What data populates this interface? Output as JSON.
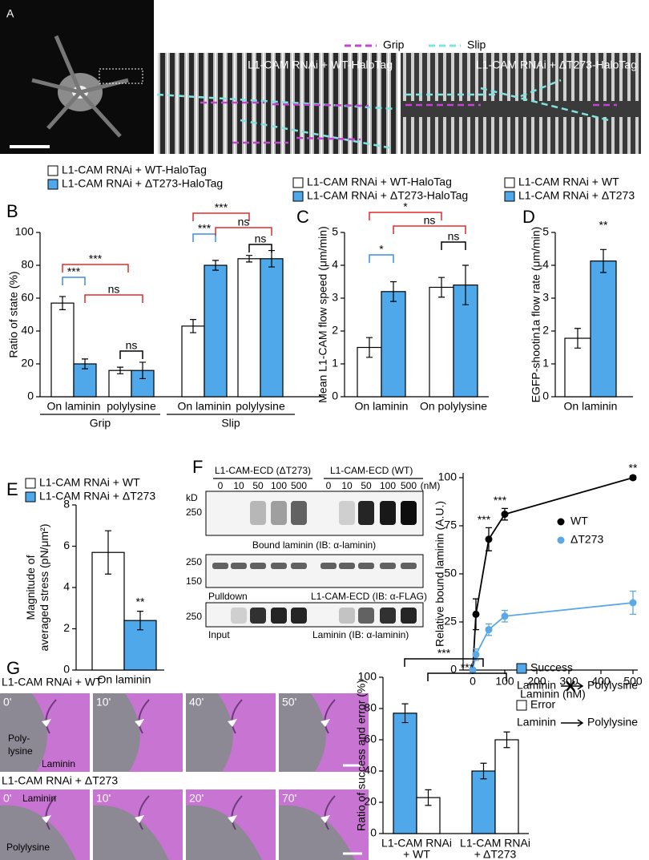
{
  "panel_a": {
    "label": "A",
    "legend": [
      {
        "name": "Grip",
        "color": "#c444d4"
      },
      {
        "name": "Slip",
        "color": "#7fe3e0"
      }
    ],
    "images": [
      "L1-CAM RNAi + WT-HaloTag",
      "L1-CAM RNAi + ΔT273-HaloTag"
    ]
  },
  "chart_data": [
    {
      "type": "bar",
      "panel": "B",
      "ylabel": "Ratio of state (%)",
      "categories": [
        "On laminin",
        "polylysine",
        "On laminin",
        "polylysine"
      ],
      "groups": [
        "Grip",
        "Slip"
      ],
      "series": [
        {
          "name": "L1-CAM RNAi + WT-HaloTag",
          "color": "#ffffff",
          "values": [
            57,
            16,
            43,
            84
          ],
          "errors": [
            4,
            2,
            4,
            2
          ]
        },
        {
          "name": "L1-CAM RNAi + ΔT273-HaloTag",
          "color": "#4fa8ea",
          "values": [
            20,
            16,
            80,
            84
          ],
          "errors": [
            3,
            5,
            3,
            5
          ]
        }
      ],
      "ylim": [
        0,
        100
      ],
      "yticks": [
        0,
        20,
        40,
        60,
        80,
        100
      ],
      "annotations": [
        {
          "text": "***",
          "color": "#e02b2b"
        },
        {
          "text": "***",
          "color": "#3d8fe0"
        },
        {
          "text": "ns",
          "color": "#e02b2b"
        },
        {
          "text": "ns",
          "color": "#000000"
        },
        {
          "text": "***",
          "color": "#e02b2b"
        },
        {
          "text": "***",
          "color": "#3d8fe0"
        },
        {
          "text": "ns",
          "color": "#e02b2b"
        },
        {
          "text": "ns",
          "color": "#000000"
        }
      ]
    },
    {
      "type": "bar",
      "panel": "C",
      "ylabel": "Mean L1-CAM flow speed (μm/min)",
      "categories": [
        "On laminin",
        "On polylysine"
      ],
      "series": [
        {
          "name": "L1-CAM RNAi + WT-HaloTag",
          "color": "#ffffff",
          "values": [
            1.5,
            3.33
          ],
          "errors": [
            0.3,
            0.3
          ]
        },
        {
          "name": "L1-CAM RNAi + ΔT273-HaloTag",
          "color": "#4fa8ea",
          "values": [
            3.2,
            3.4
          ],
          "errors": [
            0.3,
            0.6
          ]
        }
      ],
      "ylim": [
        0,
        5
      ],
      "yticks": [
        0,
        1,
        2,
        3,
        4,
        5
      ],
      "annotations": [
        {
          "text": "*",
          "color": "#e02b2b"
        },
        {
          "text": "*",
          "color": "#3d8fe0"
        },
        {
          "text": "ns",
          "color": "#e02b2b"
        },
        {
          "text": "ns",
          "color": "#000000"
        }
      ]
    },
    {
      "type": "bar",
      "panel": "D",
      "ylabel": "EGFP-shootin1a flow rate (μm/min)",
      "categories": [
        "On laminin"
      ],
      "series": [
        {
          "name": "L1-CAM RNAi + WT",
          "color": "#ffffff",
          "values": [
            1.78
          ],
          "errors": [
            0.3
          ]
        },
        {
          "name": "L1-CAM RNAi + ΔT273",
          "color": "#4fa8ea",
          "values": [
            4.13
          ],
          "errors": [
            0.35
          ]
        }
      ],
      "ylim": [
        0,
        5
      ],
      "yticks": [
        0,
        1,
        2,
        3,
        4,
        5
      ],
      "annotations": [
        {
          "text": "**",
          "color": "#000000"
        }
      ]
    },
    {
      "type": "bar",
      "panel": "E",
      "ylabel": [
        "Magnitude of",
        "averaged stress (pN/μm²)"
      ],
      "categories": [
        "On laminin"
      ],
      "series": [
        {
          "name": "L1-CAM RNAi + WT",
          "color": "#ffffff",
          "values": [
            5.7
          ],
          "errors": [
            1.05
          ]
        },
        {
          "name": "L1-CAM RNAi + ΔT273",
          "color": "#4fa8ea",
          "values": [
            2.4
          ],
          "errors": [
            0.45
          ]
        }
      ],
      "ylim": [
        0,
        8
      ],
      "yticks": [
        0,
        2,
        4,
        6,
        8
      ],
      "annotations": [
        {
          "text": "**",
          "color": "#000000"
        }
      ]
    },
    {
      "type": "line",
      "xlabel": "Laminin (nM)",
      "ylabel": "Relative bound laminin (A.U.)",
      "x": [
        0,
        10,
        50,
        100,
        500
      ],
      "series": [
        {
          "name": "WT",
          "color": "#000000",
          "values": [
            0,
            29,
            68,
            81,
            100
          ],
          "errors": [
            1,
            8,
            6,
            3,
            1
          ],
          "significance": [
            null,
            null,
            "***",
            "***",
            "**"
          ]
        },
        {
          "name": "ΔT273",
          "color": "#5aa9e6",
          "values": [
            0,
            8,
            21,
            28,
            35
          ],
          "errors": [
            1,
            3,
            3,
            3,
            6
          ]
        }
      ],
      "xlim": [
        0,
        500
      ],
      "xticks": [
        0,
        100,
        200,
        300,
        400,
        500
      ],
      "ylim": [
        0,
        100
      ],
      "yticks": [
        0,
        25,
        50,
        75,
        100
      ]
    },
    {
      "type": "bar",
      "panel": "G",
      "ylabel": "Ratio of success and error (%)",
      "categories": [
        [
          "L1-CAM RNAi",
          "+ WT"
        ],
        [
          "L1-CAM RNAi",
          "+ ΔT273"
        ]
      ],
      "series": [
        {
          "name": "Success",
          "color": "#4fa8ea",
          "values": [
            77,
            40
          ],
          "errors": [
            6,
            5
          ]
        },
        {
          "name": "Error",
          "color": "#ffffff",
          "values": [
            23,
            60
          ],
          "errors": [
            5,
            5
          ]
        }
      ],
      "legend_notes": [
        {
          "from": "Laminin",
          "to": "Polylysine"
        },
        {
          "from": "Laminin",
          "to": "Polylysine"
        }
      ],
      "ylim": [
        0,
        100
      ],
      "yticks": [
        0,
        20,
        40,
        60,
        80,
        100
      ],
      "annotations": [
        {
          "text": "***",
          "color": "#000000"
        },
        {
          "text": "***",
          "color": "#000000"
        }
      ]
    }
  ],
  "panel_f_blot": {
    "label": "F",
    "lanes_left": "L1-CAM-ECD (ΔT273)",
    "lanes_right": "L1-CAM-ECD (WT)",
    "concentrations": [
      "0",
      "10",
      "50",
      "100",
      "500"
    ],
    "unit": "(nM)",
    "kd": "kD",
    "blot1": {
      "markers": [
        "250"
      ],
      "caption": "Bound laminin (IB: α-laminin)"
    },
    "blot2": {
      "markers": [
        "250",
        "150"
      ],
      "caption_left": "Pulldown",
      "caption_right": "L1-CAM-ECD (IB: α-FLAG)"
    },
    "blot3": {
      "markers": [
        "250"
      ],
      "caption_left": "Input",
      "caption_right": "Laminin (IB: α-laminin)"
    }
  },
  "panel_g_images": {
    "rows": [
      {
        "label": "L1-CAM RNAi + WT",
        "times": [
          "0'",
          "10'",
          "40'",
          "50'"
        ],
        "left_region": [
          "Poly-",
          "lysine"
        ],
        "right_region": "Laminin"
      },
      {
        "label": "L1-CAM RNAi + ΔT273",
        "times": [
          "0'",
          "10'",
          "20'",
          "70'"
        ],
        "top_region": "Laminin",
        "bottom_region": "Polylysine"
      }
    ]
  }
}
